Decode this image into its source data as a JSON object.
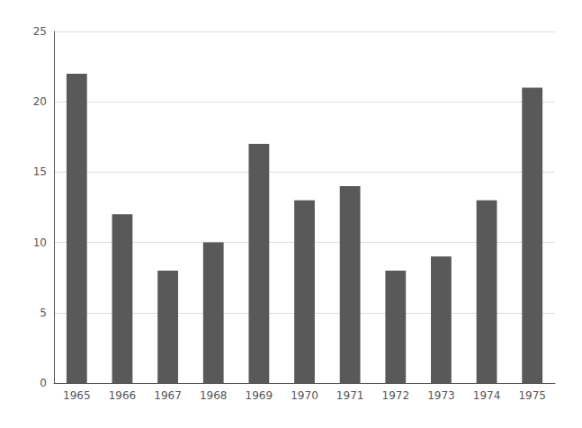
{
  "chart_data": {
    "type": "bar",
    "categories": [
      "1965",
      "1966",
      "1967",
      "1968",
      "1969",
      "1970",
      "1971",
      "1972",
      "1973",
      "1974",
      "1975"
    ],
    "values": [
      22,
      12,
      8,
      10,
      17,
      13,
      14,
      8,
      9,
      13,
      21
    ],
    "color": "#595959",
    "ylim": [
      0,
      25
    ],
    "yticks": [
      0,
      5,
      10,
      15,
      20,
      25
    ],
    "grid": true
  }
}
